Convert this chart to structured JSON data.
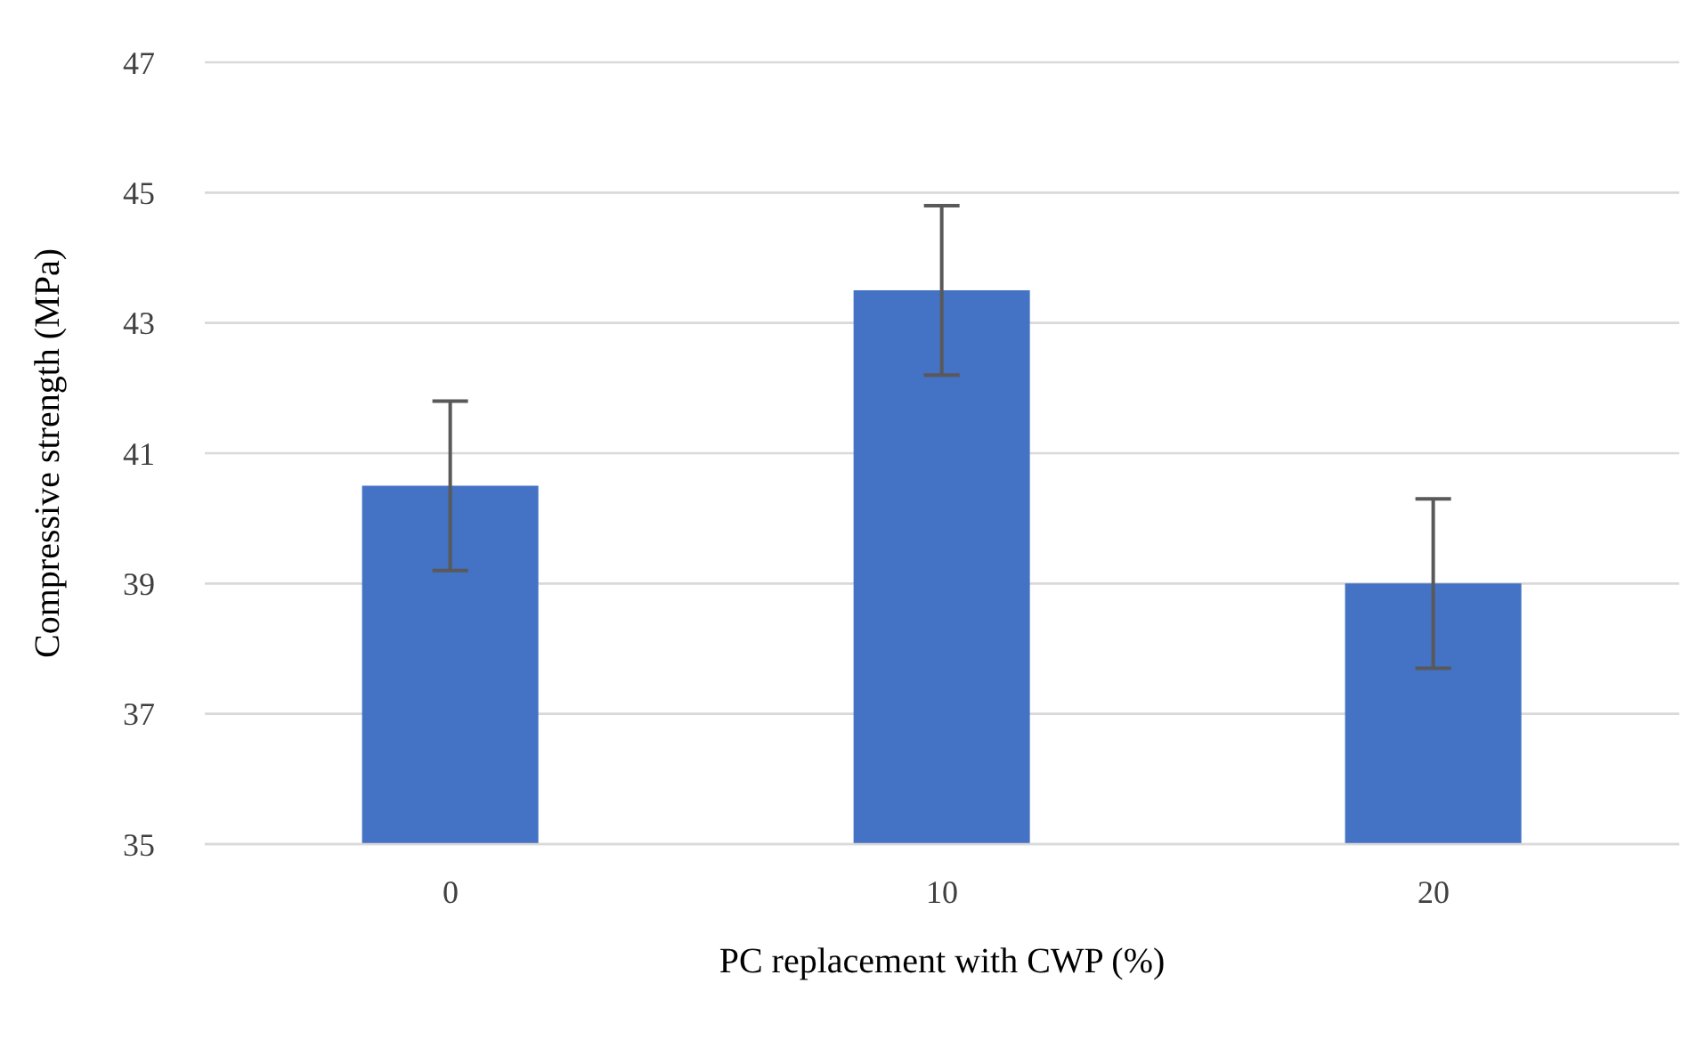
{
  "chart_data": {
    "type": "bar",
    "xlabel": "PC replacement with CWP (%)",
    "ylabel": "Compressive strength (MPa)",
    "categories": [
      "0",
      "10",
      "20"
    ],
    "values": [
      40.5,
      43.5,
      39.0
    ],
    "errors": [
      1.3,
      1.3,
      1.3
    ],
    "color": "#4472c4",
    "ylim": [
      35,
      47
    ],
    "yticks": [
      35,
      37,
      39,
      41,
      43,
      45,
      47
    ],
    "grid": "y"
  }
}
